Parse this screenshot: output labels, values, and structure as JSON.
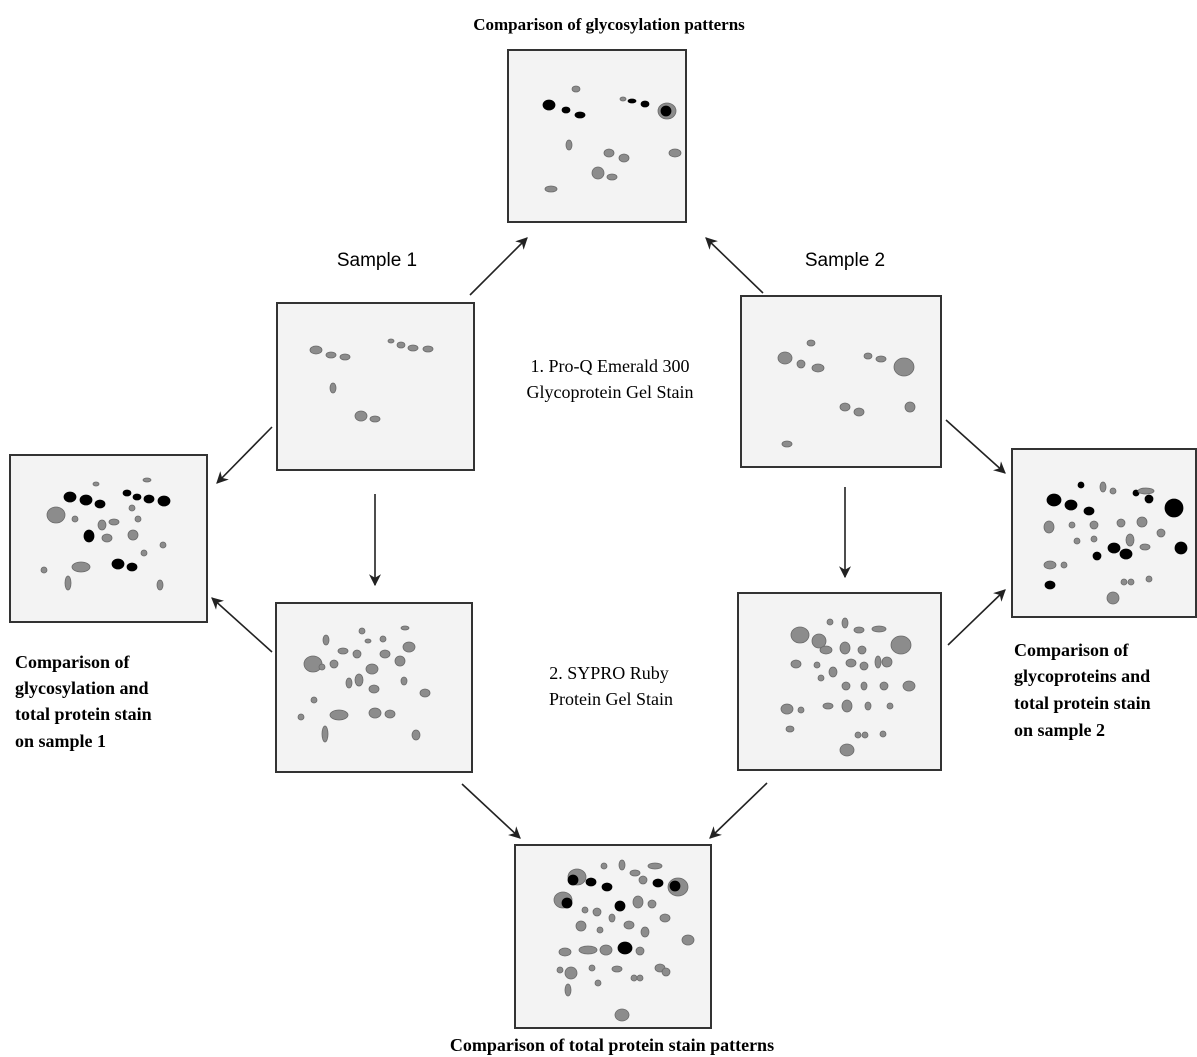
{
  "header": {
    "title": "Comparison of glycosylation patterns"
  },
  "samples": [
    "Sample 1",
    "Sample 2"
  ],
  "stains": [
    {
      "lines": [
        "1. Pro-Q Emerald 300",
        "Glycoprotein Gel Stain"
      ]
    },
    {
      "lines": [
        "2. SYPRO Ruby",
        "Protein Gel Stain"
      ]
    }
  ],
  "captions": {
    "left": [
      "Comparison of",
      "glycosylation and",
      "total protein stain",
      "on sample 1"
    ],
    "right": [
      "Comparison of",
      "glycoproteins  and",
      "total protein stain",
      "on sample 2"
    ],
    "bottom": "Comparison of total protein stain patterns"
  }
}
